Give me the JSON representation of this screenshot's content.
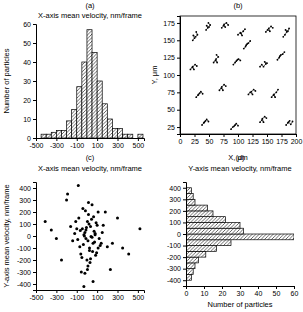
{
  "chart_data": [
    {
      "type": "histogram",
      "subtitle": "(a)",
      "title": "X-axis mean velocity, nm/frame",
      "y_label": "Number of particles",
      "bins": [
        -450,
        -400,
        -350,
        -300,
        -250,
        -200,
        -150,
        -100,
        -50,
        0,
        50,
        100,
        150,
        200,
        250,
        300,
        350,
        400,
        450,
        500,
        550
      ],
      "values": [
        2,
        2,
        3,
        4,
        4,
        9,
        15,
        27,
        40,
        57,
        45,
        30,
        18,
        10,
        5,
        5,
        2,
        2,
        0,
        2
      ],
      "color": "#000000",
      "xlim": [
        -500,
        560
      ],
      "xticks": [
        -500,
        -300,
        -100,
        100,
        300,
        500
      ],
      "ylim": [
        0,
        60
      ],
      "yticks": [
        0,
        10,
        20,
        30,
        40,
        50,
        60
      ]
    },
    {
      "type": "line",
      "subtitle": "(b)",
      "x_label": "X, μm",
      "y_label": "Y, μm",
      "marker": "circle",
      "xlim": [
        0,
        200
      ],
      "xticks": [
        0,
        25,
        50,
        75,
        100,
        125,
        150,
        175,
        200
      ],
      "ylim": [
        15,
        185
      ],
      "yticks": [
        25,
        50,
        75,
        100,
        125,
        150,
        175
      ],
      "series": [
        {
          "color": "#000000",
          "x": [
            22,
            25,
            23,
            27,
            30,
            28
          ],
          "values": [
            150,
            153,
            157,
            155,
            158,
            162
          ]
        },
        {
          "color": "#000000",
          "x": [
            45,
            48,
            46,
            50,
            52,
            49
          ],
          "values": [
            165,
            168,
            171,
            169,
            172,
            175
          ]
        },
        {
          "color": "#000000",
          "x": [
            72,
            75,
            78,
            76,
            80,
            83
          ],
          "values": [
            168,
            171,
            169,
            173,
            175,
            172
          ]
        },
        {
          "color": "#000000",
          "x": [
            100,
            104,
            107,
            105,
            109,
            112
          ],
          "values": [
            158,
            161,
            157,
            160,
            163,
            166
          ]
        },
        {
          "color": "#000000",
          "x": [
            148,
            151,
            155,
            153,
            157,
            160
          ],
          "values": [
            162,
            165,
            163,
            167,
            170,
            168
          ]
        },
        {
          "color": "#000000",
          "x": [
            178,
            181,
            184,
            182,
            186,
            188
          ],
          "values": [
            155,
            158,
            162,
            165,
            163,
            167
          ]
        },
        {
          "color": "#000000",
          "x": [
            18,
            21,
            24,
            22,
            26,
            29
          ],
          "values": [
            108,
            111,
            108,
            112,
            115,
            113
          ]
        },
        {
          "color": "#000000",
          "x": [
            58,
            61,
            64,
            62,
            66,
            63
          ],
          "values": [
            118,
            121,
            118,
            123,
            126,
            129
          ]
        },
        {
          "color": "#000000",
          "x": [
            92,
            95,
            99,
            97,
            101,
            104
          ],
          "values": [
            115,
            118,
            122,
            120,
            123,
            121
          ]
        },
        {
          "color": "#000000",
          "x": [
            138,
            141,
            144,
            148,
            146,
            150
          ],
          "values": [
            112,
            115,
            112,
            116,
            119,
            117
          ]
        },
        {
          "color": "#000000",
          "x": [
            168,
            171,
            174,
            172,
            177,
            180
          ],
          "values": [
            122,
            125,
            129,
            127,
            130,
            133
          ]
        },
        {
          "color": "#000000",
          "x": [
            28,
            31,
            34,
            32,
            36,
            39
          ],
          "values": [
            68,
            71,
            74,
            72,
            76,
            73
          ]
        },
        {
          "color": "#000000",
          "x": [
            68,
            71,
            74,
            72,
            76,
            79
          ],
          "values": [
            78,
            81,
            78,
            83,
            86,
            84
          ]
        },
        {
          "color": "#000000",
          "x": [
            118,
            121,
            125,
            123,
            127,
            130
          ],
          "values": [
            72,
            75,
            72,
            76,
            79,
            77
          ]
        },
        {
          "color": "#000000",
          "x": [
            158,
            161,
            164,
            162,
            166,
            169
          ],
          "values": [
            68,
            71,
            68,
            72,
            75,
            79
          ]
        },
        {
          "color": "#000000",
          "x": [
            38,
            41,
            44,
            42,
            46,
            49
          ],
          "values": [
            28,
            31,
            34,
            32,
            36,
            33
          ]
        },
        {
          "color": "#000000",
          "x": [
            88,
            91,
            95,
            93,
            97,
            100
          ],
          "values": [
            22,
            25,
            28,
            26,
            30,
            27
          ]
        },
        {
          "color": "#000000",
          "x": [
            138,
            141,
            144,
            142,
            146,
            149
          ],
          "values": [
            32,
            35,
            32,
            37,
            40,
            38
          ]
        },
        {
          "color": "#000000",
          "x": [
            183,
            186,
            189,
            187,
            191,
            194
          ],
          "values": [
            28,
            31,
            34,
            32,
            29,
            33
          ]
        },
        {
          "color": "#000000",
          "x": [
            110,
            113,
            116,
            114,
            118,
            121
          ],
          "values": [
            138,
            141,
            145,
            143,
            146,
            149
          ]
        }
      ]
    },
    {
      "type": "scatter",
      "subtitle": "(c)",
      "x_label": "X-axis mean velocity, nm/frame",
      "y_label": "Y-axis mean velocity, nm/frame",
      "color": "#000000",
      "marker": "circle",
      "xlim": [
        -500,
        560
      ],
      "xticks": [
        -500,
        -300,
        -100,
        100,
        300,
        500
      ],
      "ylim": [
        -450,
        450
      ],
      "yticks": [
        -400,
        -300,
        -200,
        -100,
        0,
        100,
        200,
        300,
        400
      ],
      "x": [
        -20,
        10,
        35,
        50,
        -45,
        80,
        -70,
        5,
        60,
        -30,
        100,
        -90,
        25,
        -10,
        45,
        -60,
        120,
        15,
        70,
        -35,
        0,
        90,
        -120,
        40,
        -5,
        130,
        -80,
        55,
        20,
        -50,
        150,
        -15,
        75,
        30,
        -100,
        65,
        10,
        -25,
        110,
        -140,
        85,
        -40,
        35,
        160,
        -65,
        5,
        50,
        -20,
        95,
        -110,
        180,
        -160,
        200,
        -200,
        250,
        -250,
        300,
        -300,
        350,
        -350,
        410,
        -410,
        520,
        -190,
        230,
        140,
        -85,
        60,
        15,
        -55,
        25,
        110,
        -30,
        80,
        -10
      ],
      "values": [
        30,
        -40,
        80,
        -10,
        60,
        20,
        -90,
        120,
        -60,
        10,
        90,
        -30,
        -120,
        50,
        140,
        -150,
        -20,
        180,
        40,
        -70,
        -200,
        110,
        20,
        -5,
        70,
        -80,
        150,
        -130,
        100,
        -180,
        30,
        210,
        -50,
        -220,
        60,
        160,
        -250,
        0,
        -100,
        -40,
        -160,
        230,
        -190,
        90,
        45,
        -280,
        260,
        -310,
        -140,
        120,
        200,
        80,
        -90,
        300,
        -60,
        -200,
        150,
        -20,
        -100,
        50,
        -150,
        120,
        60,
        350,
        -280,
        -60,
        420,
        -380,
        280,
        -300,
        -100,
        200,
        -420,
        10,
        -20
      ]
    },
    {
      "type": "histogram",
      "orientation": "horizontal",
      "subtitle": "(d)",
      "title": "Y-axis mean velocity, nm/frame",
      "x_label": "Number of particles",
      "bins": [
        -400,
        -350,
        -300,
        -250,
        -200,
        -150,
        -100,
        -50,
        0,
        50,
        100,
        150,
        200,
        250,
        300,
        350,
        400
      ],
      "values": [
        3,
        4,
        5,
        7,
        11,
        17,
        25,
        60,
        32,
        30,
        22,
        15,
        12,
        5,
        4,
        3
      ],
      "color": "#000000",
      "xlim": [
        0,
        60
      ],
      "xticks": [
        0,
        10,
        20,
        30,
        40,
        50,
        60
      ],
      "ylim": [
        -450,
        450
      ],
      "yticks": [
        -400,
        -300,
        -200,
        -100,
        0,
        100,
        200,
        300,
        400
      ]
    }
  ]
}
